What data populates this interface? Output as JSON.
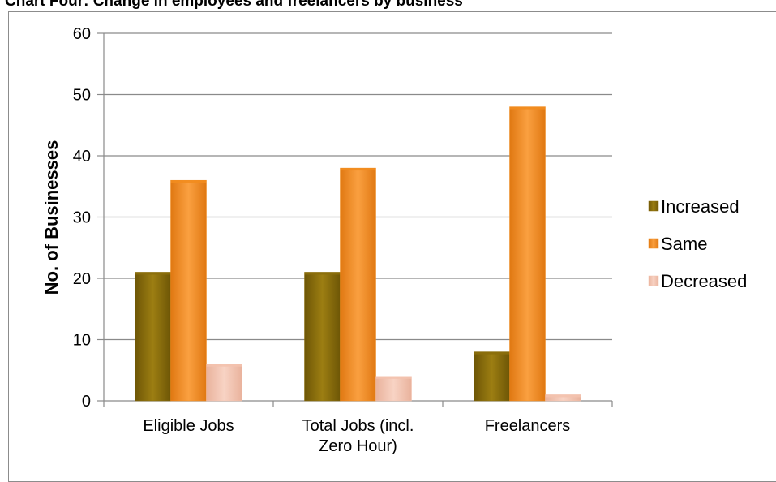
{
  "chart_data": {
    "type": "bar",
    "title": "Chart Four: Change in employees and freelancers by business",
    "ylabel": "No. of Businesses",
    "xlabel": "",
    "ylim": [
      0,
      60
    ],
    "yticks": [
      0,
      10,
      20,
      30,
      40,
      50,
      60
    ],
    "grid": true,
    "legend_position": "right",
    "categories": [
      [
        "Eligible Jobs"
      ],
      [
        "Total Jobs (incl.",
        "Zero Hour)"
      ],
      [
        "Freelancers"
      ]
    ],
    "series": [
      {
        "name": "Increased",
        "values": [
          21,
          21,
          8
        ],
        "color": "#8B6E0B"
      },
      {
        "name": "Same",
        "values": [
          36,
          38,
          48
        ],
        "color": "#F28C1E"
      },
      {
        "name": "Decreased",
        "values": [
          6,
          4,
          1
        ],
        "color": "#F3C2AE"
      }
    ]
  }
}
